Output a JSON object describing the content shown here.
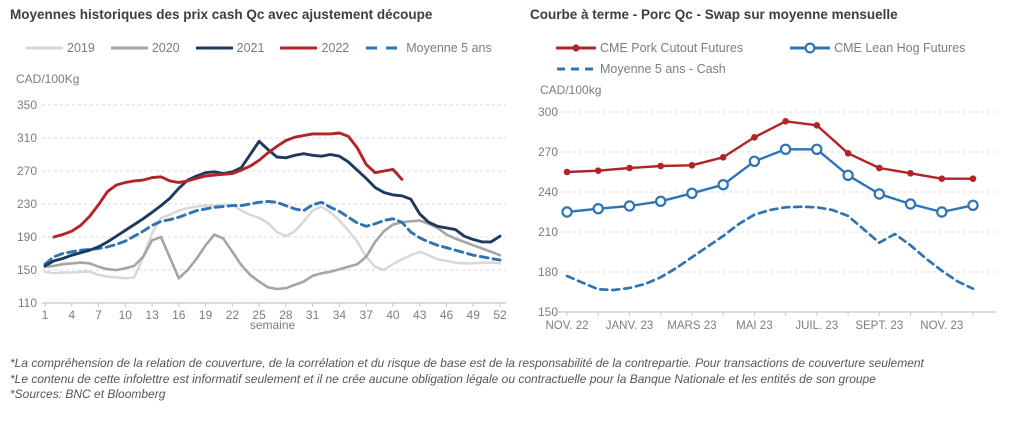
{
  "footnotes": [
    "*La compréhension de la relation de couverture, de la corrélation et du risque de base est de la responsabilité de la contrepartie. Pour transactions de couverture seulement",
    "*Le contenu de cette infolettre est informatif seulement et il ne crée aucune obligation légale ou contractuelle pour la Banque Nationale et les entités de son groupe",
    "*Sources: BNC et Bloomberg"
  ],
  "colors": {
    "navy": "#1e3a5c",
    "red": "#b2232a",
    "steel_blue": "#2e74b5",
    "gray_2020": "#a5a5a5",
    "gray_2019": "#d8d8d8",
    "title_text": "#3e3e3e",
    "axis_text": "#7d7d7d",
    "gridline": "#d9d9d9"
  },
  "chart_data": [
    {
      "type": "line",
      "title": "Moyennes historiques des prix cash Qc avec ajustement découpe",
      "ylabel": "CAD/100Kg",
      "xlabel": "semaine",
      "ylim": [
        110,
        350
      ],
      "yticks": [
        350,
        310,
        270,
        230,
        190,
        150,
        110
      ],
      "xticks": [
        1,
        4,
        7,
        10,
        13,
        16,
        19,
        22,
        25,
        28,
        31,
        34,
        37,
        40,
        43,
        46,
        49,
        52
      ],
      "grid": "horizontal-dashed",
      "legend_position": "top",
      "series": [
        {
          "name": "2019",
          "color": "#d8d8d8",
          "style": "solid",
          "x_start": 1,
          "x_step": 1,
          "values": [
            148,
            146,
            147,
            147,
            148,
            148,
            144,
            142,
            141,
            140,
            141,
            165,
            195,
            213,
            217,
            222,
            225,
            227,
            228,
            228,
            229,
            229,
            222,
            217,
            213,
            207,
            196,
            191,
            197,
            209,
            222,
            227,
            220,
            210,
            198,
            184,
            166,
            154,
            150,
            157,
            163,
            168,
            172,
            168,
            163,
            161,
            159,
            158,
            158,
            159,
            159,
            158
          ]
        },
        {
          "name": "2020",
          "color": "#a5a5a5",
          "style": "solid",
          "x_start": 1,
          "x_step": 1,
          "values": [
            154,
            155,
            157,
            158,
            159,
            158,
            154,
            151,
            150,
            152,
            155,
            166,
            186,
            190,
            165,
            140,
            150,
            164,
            180,
            193,
            188,
            172,
            156,
            144,
            136,
            129,
            127,
            128,
            132,
            136,
            143,
            146,
            148,
            151,
            154,
            157,
            166,
            184,
            197,
            205,
            208,
            209,
            210,
            206,
            201,
            193,
            188,
            184,
            180,
            176,
            172,
            168
          ]
        },
        {
          "name": "2021",
          "color": "#1e3a5c",
          "style": "solid",
          "x_start": 1,
          "x_step": 1,
          "values": [
            155,
            161,
            164,
            168,
            171,
            174,
            178,
            184,
            191,
            198,
            205,
            212,
            220,
            228,
            237,
            249,
            259,
            264,
            268,
            269,
            267,
            269,
            274,
            290,
            306,
            296,
            287,
            286,
            289,
            291,
            289,
            288,
            290,
            288,
            281,
            271,
            261,
            250,
            244,
            241,
            240,
            236,
            218,
            208,
            203,
            201,
            199,
            191,
            187,
            184,
            184,
            191
          ]
        },
        {
          "name": "2022",
          "color": "#b2232a",
          "style": "solid",
          "x_start": 1,
          "x_step": 1,
          "values": [
            null,
            190,
            193,
            197,
            204,
            215,
            229,
            245,
            253,
            256,
            258,
            259,
            262,
            263,
            258,
            256,
            258,
            261,
            264,
            265,
            266,
            267,
            271,
            276,
            283,
            292,
            300,
            307,
            311,
            313,
            315,
            315,
            315,
            316,
            312,
            298,
            278,
            268,
            270,
            272,
            260,
            null,
            null,
            null,
            null,
            null,
            null,
            null,
            null,
            null,
            null,
            null
          ]
        },
        {
          "name": "Moyenne 5 ans",
          "color": "#2e74b5",
          "style": "dashed",
          "x_start": 1,
          "x_step": 1,
          "values": [
            157,
            166,
            170,
            172,
            174,
            175,
            176,
            178,
            181,
            185,
            191,
            197,
            204,
            209,
            211,
            214,
            218,
            222,
            224,
            226,
            227,
            228,
            228,
            230,
            232,
            233,
            232,
            228,
            224,
            222,
            229,
            232,
            226,
            221,
            214,
            207,
            203,
            206,
            210,
            212,
            208,
            196,
            189,
            184,
            180,
            177,
            174,
            171,
            168,
            166,
            164,
            162
          ]
        }
      ]
    },
    {
      "type": "line",
      "title": "Courbe à terme - Porc Qc - Swap sur moyenne mensuelle",
      "ylabel": "CAD/100kg",
      "xlabel": "",
      "ylim": [
        150,
        300
      ],
      "yticks": [
        300,
        270,
        240,
        210,
        180,
        150
      ],
      "xtick_labels": [
        "NOV. 22",
        "JANV. 23",
        "MARS 23",
        "MAI 23",
        "JUIL. 23",
        "SEPT. 23",
        "NOV. 23"
      ],
      "xtick_positions": [
        0,
        2,
        4,
        6,
        8,
        10,
        12
      ],
      "grid": "horizontal-dashed",
      "legend_position": "top",
      "series": [
        {
          "name": "CME Pork Cutout Futures",
          "color": "#b2232a",
          "style": "solid",
          "marker": "filled-circle",
          "x_start": 0,
          "x_step": 1,
          "values": [
            255,
            256,
            258,
            259.5,
            260,
            266,
            281,
            293,
            290,
            269,
            258,
            254,
            250,
            250
          ]
        },
        {
          "name": "CME Lean Hog Futures",
          "color": "#2e74b5",
          "style": "solid",
          "marker": "open-circle",
          "x_start": 0,
          "x_step": 1,
          "values": [
            225,
            227.5,
            229.5,
            233,
            239,
            245.5,
            263,
            272,
            272,
            252.5,
            238.5,
            231,
            225,
            230
          ]
        },
        {
          "name": "Moyenne 5 ans - Cash",
          "color": "#2e74b5",
          "style": "dashed",
          "x_start": 0,
          "x_step": 0.5,
          "values": [
            177,
            172,
            167,
            166.5,
            168,
            171,
            176,
            183,
            191,
            199,
            207,
            216,
            223,
            226.5,
            228.5,
            229,
            228.5,
            226.5,
            222,
            212,
            202,
            208.5,
            200,
            190,
            181,
            173,
            167.5
          ]
        }
      ]
    }
  ]
}
